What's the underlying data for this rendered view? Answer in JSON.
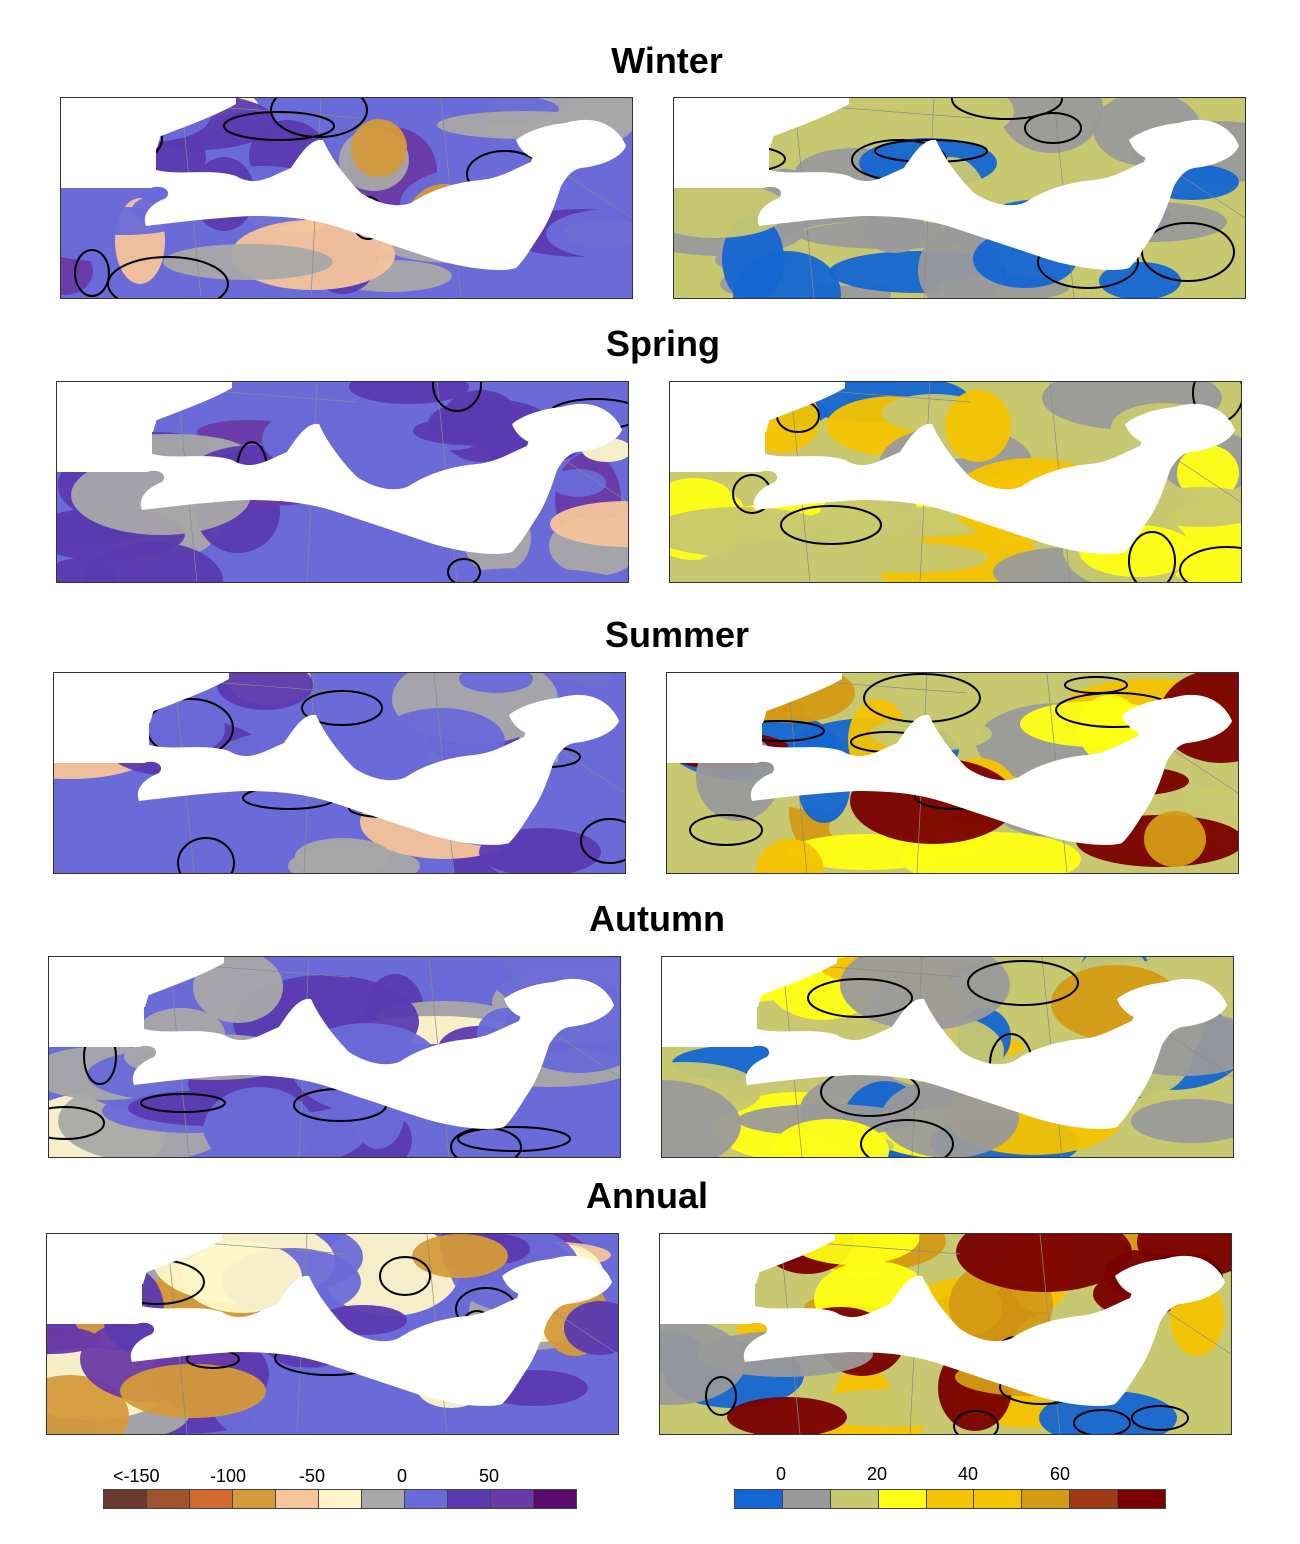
{
  "seasons": [
    {
      "title": "Winter",
      "left_palette": "precip",
      "right_palette": "drought"
    },
    {
      "title": "Spring",
      "left_palette": "precip",
      "right_palette": "drought"
    },
    {
      "title": "Summer",
      "left_palette": "precip",
      "right_palette": "drought"
    },
    {
      "title": "Autumn",
      "left_palette": "precip",
      "right_palette": "drought"
    },
    {
      "title": "Annual",
      "left_palette": "precip",
      "right_palette": "drought"
    }
  ],
  "legend_left": {
    "colors": [
      "#6b3a2e",
      "#a0522d",
      "#d2692f",
      "#d49a3a",
      "#f5c49a",
      "#fdf5c8",
      "#a8a8a8",
      "#6a6ad8",
      "#5b3ab0",
      "#6a3aa8",
      "#5a0a6e"
    ],
    "labels": [
      "<-150",
      "-100",
      "-50",
      "0",
      "50"
    ]
  },
  "legend_right": {
    "colors": [
      "#1466d2",
      "#9a9a9a",
      "#c8c870",
      "#ffff14",
      "#f5c400",
      "#f5c400",
      "#d49a14",
      "#a03a14",
      "#7a0000"
    ],
    "labels": [
      "0",
      "20",
      "40",
      "60"
    ]
  },
  "colors": {
    "sea": "#ffffff",
    "coast_line": "#000000",
    "border_line": "#8a8a8a"
  }
}
